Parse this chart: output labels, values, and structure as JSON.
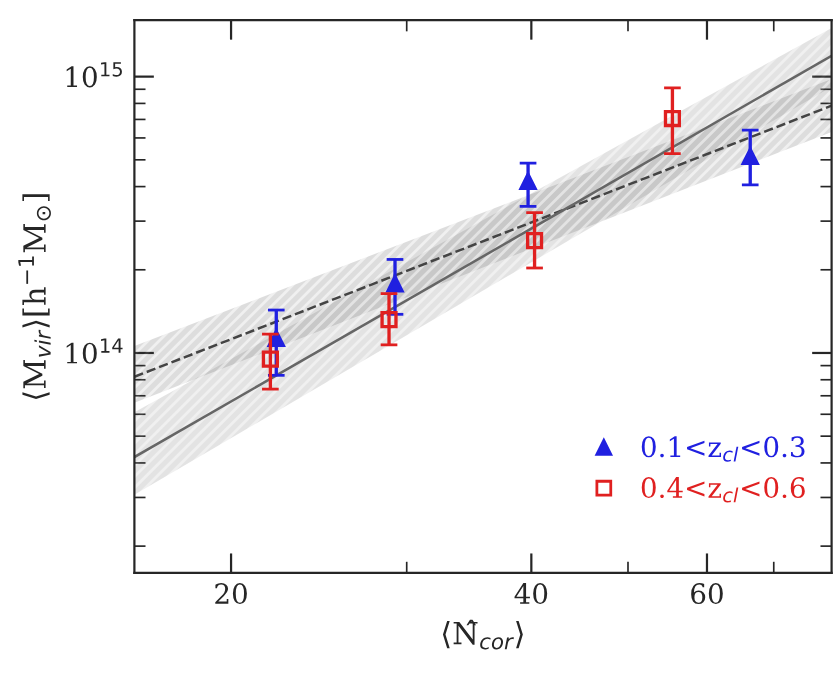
{
  "chart_data": {
    "type": "scatter",
    "xlabel": "⟨N̂$_{cor}$⟩",
    "ylabel": "⟨M$_{vir}$⟩[h$^{−1}$M$_{⊙}$]",
    "log": "xy",
    "xlim": [
      16,
      80
    ],
    "ylim": [
      16000000000000.0,
      1600000000000000.0
    ],
    "xticks": [
      20,
      {
        "value": 30,
        "label": null
      },
      40,
      {
        "value": 50,
        "label": null
      },
      60,
      {
        "value": 70,
        "label": null
      }
    ],
    "yticks": [
      {
        "value": 20000000000000.0,
        "label": null
      },
      {
        "value": 30000000000000.0,
        "label": null
      },
      {
        "value": 40000000000000.0,
        "label": null
      },
      {
        "value": 50000000000000.0,
        "label": null
      },
      {
        "value": 60000000000000.0,
        "label": null
      },
      {
        "value": 70000000000000.0,
        "label": null
      },
      {
        "value": 80000000000000.0,
        "label": null
      },
      {
        "value": 90000000000000.0,
        "label": null
      },
      {
        "value": 100000000000000.0,
        "label": "10$^{14}$"
      },
      {
        "value": 200000000000000.0,
        "label": null
      },
      {
        "value": 300000000000000.0,
        "label": null
      },
      {
        "value": 400000000000000.0,
        "label": null
      },
      {
        "value": 500000000000000.0,
        "label": null
      },
      {
        "value": 600000000000000.0,
        "label": null
      },
      {
        "value": 700000000000000.0,
        "label": null
      },
      {
        "value": 800000000000000.0,
        "label": null
      },
      {
        "value": 900000000000000.0,
        "label": null
      },
      {
        "value": 1000000000000000.0,
        "label": "10$^{15}$"
      }
    ],
    "grid": false,
    "legend": "bottom right",
    "series": [
      {
        "type": "line",
        "color": "#444444",
        "line_style": "dashed",
        "x": [
          16,
          80
        ],
        "values": [
          82000000000000.0,
          785000000000000.0
        ],
        "lower": [
          66000000000000.0,
          630000000000000.0
        ],
        "upper": [
          106000000000000.0,
          980000000000000.0
        ]
      },
      {
        "type": "line",
        "color": "#666666",
        "line_style": "solid",
        "x": [
          16,
          80
        ],
        "values": [
          42000000000000.0,
          1190000000000000.0
        ],
        "lower": [
          30700000000000.0,
          920000000000000.0
        ],
        "upper": [
          61000000000000.0,
          1500000000000000.0
        ]
      },
      {
        "name": "0.1<z$_{cl}$<0.3",
        "color": "#2020e0",
        "marker": "triangle",
        "x": [
          22.2,
          29.2,
          39.7,
          66.3
        ],
        "values": [
          113000000000000.0,
          178000000000000.0,
          418000000000000.0,
          514000000000000.0
        ],
        "errors": [
          [
            83000000000000.0,
            143000000000000.0
          ],
          [
            138000000000000.0,
            218000000000000.0
          ],
          [
            339000000000000.0,
            486000000000000.0
          ],
          [
            406000000000000.0,
            640000000000000.0
          ]
        ]
      },
      {
        "name": "0.4<z$_{cl}$<0.6",
        "color": "#e02020",
        "marker": "square",
        "x": [
          21.9,
          28.8,
          40.3,
          55.4
        ],
        "values": [
          95000000000000.0,
          132000000000000.0,
          255000000000000.0,
          705000000000000.0
        ],
        "errors": [
          [
            74000000000000.0,
            117000000000000.0
          ],
          [
            107000000000000.0,
            164000000000000.0
          ],
          [
            203000000000000.0,
            322000000000000.0
          ],
          [
            526000000000000.0,
            910000000000000.0
          ]
        ]
      }
    ]
  }
}
